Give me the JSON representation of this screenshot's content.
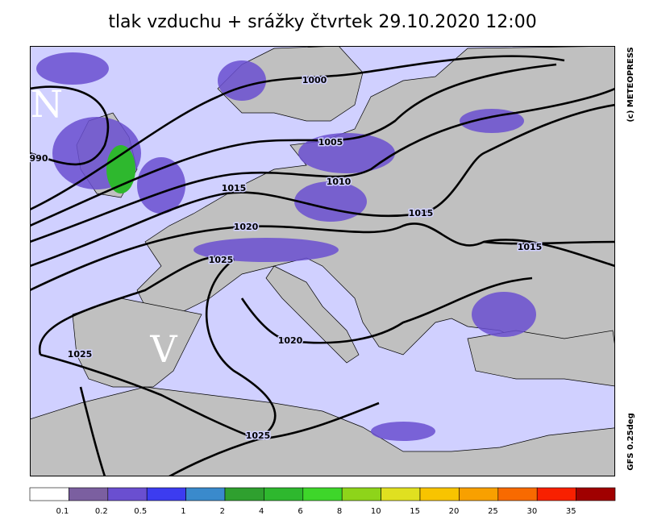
{
  "title": "tlak vzduchu + srážky čtvrtek 29.10.2020 12:00",
  "credit": "(c) METEOPRESS",
  "model": "GFS 0.25deg",
  "pressure_centers": [
    "N",
    "V"
  ],
  "isobar_labels": [
    990,
    1000,
    1005,
    1010,
    1015,
    1015,
    1015,
    1020,
    1020,
    1025,
    1025,
    1025
  ],
  "legend": {
    "colors": [
      "#ffffff",
      "#7b5fa0",
      "#6a4fd0",
      "#3c3cf0",
      "#3a8acc",
      "#2fa02f",
      "#2eb82e",
      "#3ed62a",
      "#8ed41a",
      "#e0e020",
      "#f8c400",
      "#f8a000",
      "#f86a00",
      "#f82000",
      "#a00000"
    ],
    "labels": [
      0.1,
      0.2,
      0.5,
      1,
      2,
      4,
      6,
      8,
      10,
      15,
      20,
      25,
      30,
      35
    ]
  }
}
